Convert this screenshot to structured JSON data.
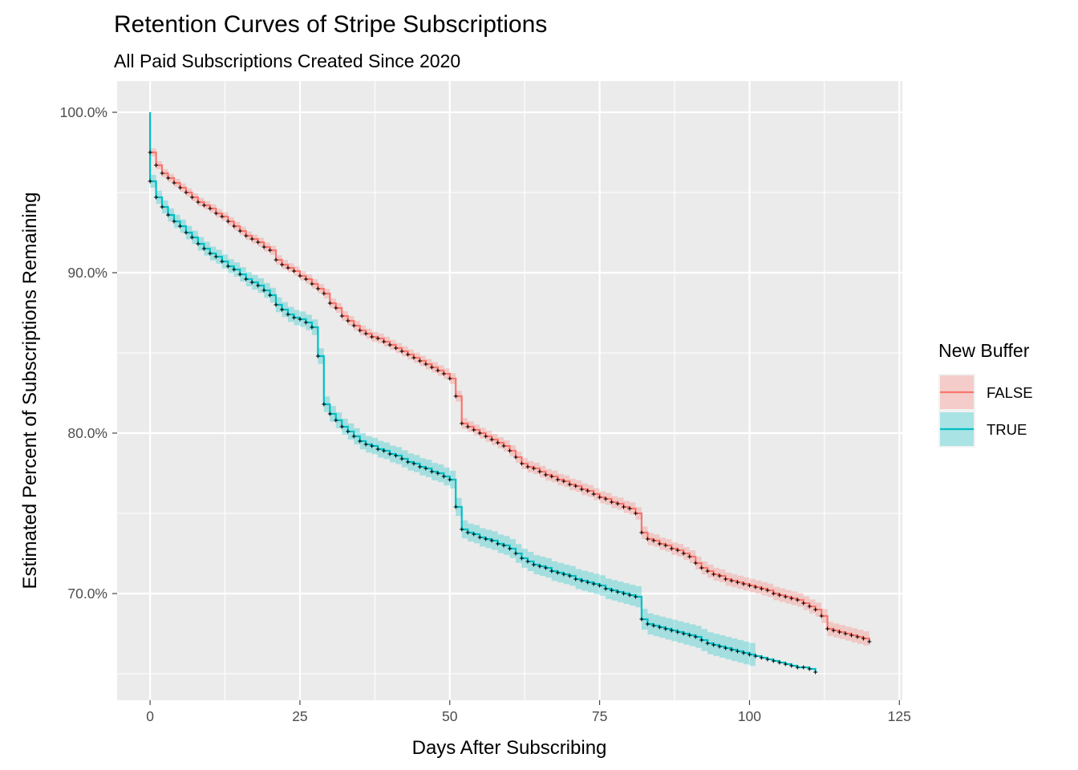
{
  "chart_data": {
    "type": "line",
    "subtype": "kaplan-meier step curves with confidence bands and censor marks",
    "title": "Retention Curves of Stripe Subscriptions",
    "subtitle": "All Paid Subscriptions Created Since 2020",
    "xlabel": "Days After Subscribing",
    "ylabel": "Estimated Percent of Subscriptions Remaining",
    "xlim": [
      -5.5,
      125.5
    ],
    "ylim": [
      0.6335,
      1.0195
    ],
    "x_ticks": [
      0,
      25,
      50,
      75,
      100,
      125
    ],
    "x_tick_labels": [
      "0",
      "25",
      "50",
      "75",
      "100",
      "125"
    ],
    "y_ticks": [
      0.7,
      0.8,
      0.9,
      1.0
    ],
    "y_tick_labels": [
      "70.0%",
      "80.0%",
      "90.0%",
      "100.0%"
    ],
    "grid": true,
    "legend": {
      "title": "New Buffer",
      "position": "right"
    },
    "series": [
      {
        "name": "FALSE",
        "color": "#F8766D",
        "band_color": "#F8766D",
        "points": [
          [
            0,
            1.0
          ],
          [
            0,
            0.975
          ],
          [
            1,
            0.967
          ],
          [
            2,
            0.962
          ],
          [
            3,
            0.959
          ],
          [
            4,
            0.956
          ],
          [
            5,
            0.953
          ],
          [
            6,
            0.95
          ],
          [
            7,
            0.947
          ],
          [
            8,
            0.944
          ],
          [
            9,
            0.942
          ],
          [
            10,
            0.94
          ],
          [
            11,
            0.937
          ],
          [
            12,
            0.935
          ],
          [
            13,
            0.932
          ],
          [
            14,
            0.929
          ],
          [
            15,
            0.926
          ],
          [
            16,
            0.923
          ],
          [
            17,
            0.921
          ],
          [
            18,
            0.919
          ],
          [
            19,
            0.916
          ],
          [
            20,
            0.914
          ],
          [
            21,
            0.908
          ],
          [
            22,
            0.905
          ],
          [
            23,
            0.903
          ],
          [
            24,
            0.901
          ],
          [
            25,
            0.898
          ],
          [
            26,
            0.896
          ],
          [
            27,
            0.893
          ],
          [
            28,
            0.89
          ],
          [
            29,
            0.887
          ],
          [
            30,
            0.881
          ],
          [
            31,
            0.878
          ],
          [
            32,
            0.873
          ],
          [
            33,
            0.87
          ],
          [
            34,
            0.867
          ],
          [
            35,
            0.864
          ],
          [
            36,
            0.862
          ],
          [
            37,
            0.86
          ],
          [
            38,
            0.859
          ],
          [
            39,
            0.857
          ],
          [
            40,
            0.855
          ],
          [
            41,
            0.853
          ],
          [
            42,
            0.851
          ],
          [
            43,
            0.849
          ],
          [
            44,
            0.847
          ],
          [
            45,
            0.845
          ],
          [
            46,
            0.843
          ],
          [
            47,
            0.841
          ],
          [
            48,
            0.839
          ],
          [
            49,
            0.837
          ],
          [
            50,
            0.834
          ],
          [
            51,
            0.823
          ],
          [
            52,
            0.806
          ],
          [
            53,
            0.804
          ],
          [
            54,
            0.802
          ],
          [
            55,
            0.8
          ],
          [
            56,
            0.798
          ],
          [
            57,
            0.796
          ],
          [
            58,
            0.794
          ],
          [
            59,
            0.792
          ],
          [
            60,
            0.789
          ],
          [
            61,
            0.785
          ],
          [
            62,
            0.781
          ],
          [
            63,
            0.779
          ],
          [
            64,
            0.778
          ],
          [
            65,
            0.776
          ],
          [
            66,
            0.774
          ],
          [
            67,
            0.773
          ],
          [
            68,
            0.771
          ],
          [
            69,
            0.77
          ],
          [
            70,
            0.768
          ],
          [
            71,
            0.767
          ],
          [
            72,
            0.765
          ],
          [
            73,
            0.764
          ],
          [
            74,
            0.762
          ],
          [
            75,
            0.76
          ],
          [
            76,
            0.759
          ],
          [
            77,
            0.757
          ],
          [
            78,
            0.756
          ],
          [
            79,
            0.754
          ],
          [
            80,
            0.753
          ],
          [
            81,
            0.75
          ],
          [
            82,
            0.738
          ],
          [
            83,
            0.734
          ],
          [
            84,
            0.733
          ],
          [
            85,
            0.731
          ],
          [
            86,
            0.73
          ],
          [
            87,
            0.728
          ],
          [
            88,
            0.727
          ],
          [
            89,
            0.725
          ],
          [
            90,
            0.723
          ],
          [
            91,
            0.719
          ],
          [
            92,
            0.716
          ],
          [
            93,
            0.714
          ],
          [
            94,
            0.712
          ],
          [
            95,
            0.711
          ],
          [
            96,
            0.709
          ],
          [
            97,
            0.708
          ],
          [
            98,
            0.707
          ],
          [
            99,
            0.706
          ],
          [
            100,
            0.705
          ],
          [
            101,
            0.704
          ],
          [
            102,
            0.703
          ],
          [
            103,
            0.702
          ],
          [
            104,
            0.7
          ],
          [
            105,
            0.699
          ],
          [
            106,
            0.698
          ],
          [
            107,
            0.697
          ],
          [
            108,
            0.696
          ],
          [
            109,
            0.694
          ],
          [
            110,
            0.692
          ],
          [
            111,
            0.69
          ],
          [
            112,
            0.686
          ],
          [
            113,
            0.678
          ],
          [
            114,
            0.677
          ],
          [
            115,
            0.676
          ],
          [
            116,
            0.675
          ],
          [
            117,
            0.674
          ],
          [
            118,
            0.673
          ],
          [
            119,
            0.672
          ],
          [
            120,
            0.67
          ]
        ],
        "band_halfwidth": 0.0025
      },
      {
        "name": "TRUE",
        "color": "#00BFC4",
        "band_color": "#00BFC4",
        "points": [
          [
            0,
            1.0
          ],
          [
            0,
            0.957
          ],
          [
            1,
            0.947
          ],
          [
            2,
            0.941
          ],
          [
            3,
            0.936
          ],
          [
            4,
            0.932
          ],
          [
            5,
            0.929
          ],
          [
            6,
            0.925
          ],
          [
            7,
            0.922
          ],
          [
            8,
            0.918
          ],
          [
            9,
            0.915
          ],
          [
            10,
            0.912
          ],
          [
            11,
            0.91
          ],
          [
            12,
            0.907
          ],
          [
            13,
            0.904
          ],
          [
            14,
            0.902
          ],
          [
            15,
            0.899
          ],
          [
            16,
            0.896
          ],
          [
            17,
            0.894
          ],
          [
            18,
            0.892
          ],
          [
            19,
            0.889
          ],
          [
            20,
            0.886
          ],
          [
            21,
            0.88
          ],
          [
            22,
            0.877
          ],
          [
            23,
            0.874
          ],
          [
            24,
            0.872
          ],
          [
            25,
            0.871
          ],
          [
            26,
            0.869
          ],
          [
            27,
            0.866
          ],
          [
            28,
            0.848
          ],
          [
            29,
            0.818
          ],
          [
            30,
            0.812
          ],
          [
            31,
            0.808
          ],
          [
            32,
            0.804
          ],
          [
            33,
            0.801
          ],
          [
            34,
            0.798
          ],
          [
            35,
            0.795
          ],
          [
            36,
            0.793
          ],
          [
            37,
            0.792
          ],
          [
            38,
            0.79
          ],
          [
            39,
            0.789
          ],
          [
            40,
            0.787
          ],
          [
            41,
            0.786
          ],
          [
            42,
            0.784
          ],
          [
            43,
            0.782
          ],
          [
            44,
            0.781
          ],
          [
            45,
            0.779
          ],
          [
            46,
            0.778
          ],
          [
            47,
            0.776
          ],
          [
            48,
            0.775
          ],
          [
            49,
            0.773
          ],
          [
            50,
            0.771
          ],
          [
            51,
            0.754
          ],
          [
            52,
            0.74
          ],
          [
            53,
            0.738
          ],
          [
            54,
            0.737
          ],
          [
            55,
            0.735
          ],
          [
            56,
            0.734
          ],
          [
            57,
            0.733
          ],
          [
            58,
            0.731
          ],
          [
            59,
            0.73
          ],
          [
            60,
            0.728
          ],
          [
            61,
            0.725
          ],
          [
            62,
            0.722
          ],
          [
            63,
            0.72
          ],
          [
            64,
            0.718
          ],
          [
            65,
            0.717
          ],
          [
            66,
            0.716
          ],
          [
            67,
            0.714
          ],
          [
            68,
            0.713
          ],
          [
            69,
            0.712
          ],
          [
            70,
            0.711
          ],
          [
            71,
            0.709
          ],
          [
            72,
            0.708
          ],
          [
            73,
            0.707
          ],
          [
            74,
            0.706
          ],
          [
            75,
            0.705
          ],
          [
            76,
            0.703
          ],
          [
            77,
            0.702
          ],
          [
            78,
            0.701
          ],
          [
            79,
            0.7
          ],
          [
            80,
            0.699
          ],
          [
            81,
            0.698
          ],
          [
            82,
            0.684
          ],
          [
            83,
            0.681
          ],
          [
            84,
            0.68
          ],
          [
            85,
            0.679
          ],
          [
            86,
            0.678
          ],
          [
            87,
            0.677
          ],
          [
            88,
            0.676
          ],
          [
            89,
            0.675
          ],
          [
            90,
            0.674
          ],
          [
            91,
            0.673
          ],
          [
            92,
            0.671
          ],
          [
            93,
            0.669
          ],
          [
            94,
            0.668
          ],
          [
            95,
            0.667
          ],
          [
            96,
            0.666
          ],
          [
            97,
            0.665
          ],
          [
            98,
            0.664
          ],
          [
            99,
            0.663
          ],
          [
            100,
            0.662
          ],
          [
            101,
            0.661
          ],
          [
            102,
            0.66
          ],
          [
            103,
            0.659
          ],
          [
            104,
            0.658
          ],
          [
            105,
            0.657
          ],
          [
            106,
            0.656
          ],
          [
            107,
            0.655
          ],
          [
            108,
            0.654
          ],
          [
            109,
            0.654
          ],
          [
            110,
            0.653
          ],
          [
            111,
            0.651
          ]
        ],
        "band_end_x": 101,
        "band_halfwidth": 0.004
      }
    ]
  }
}
